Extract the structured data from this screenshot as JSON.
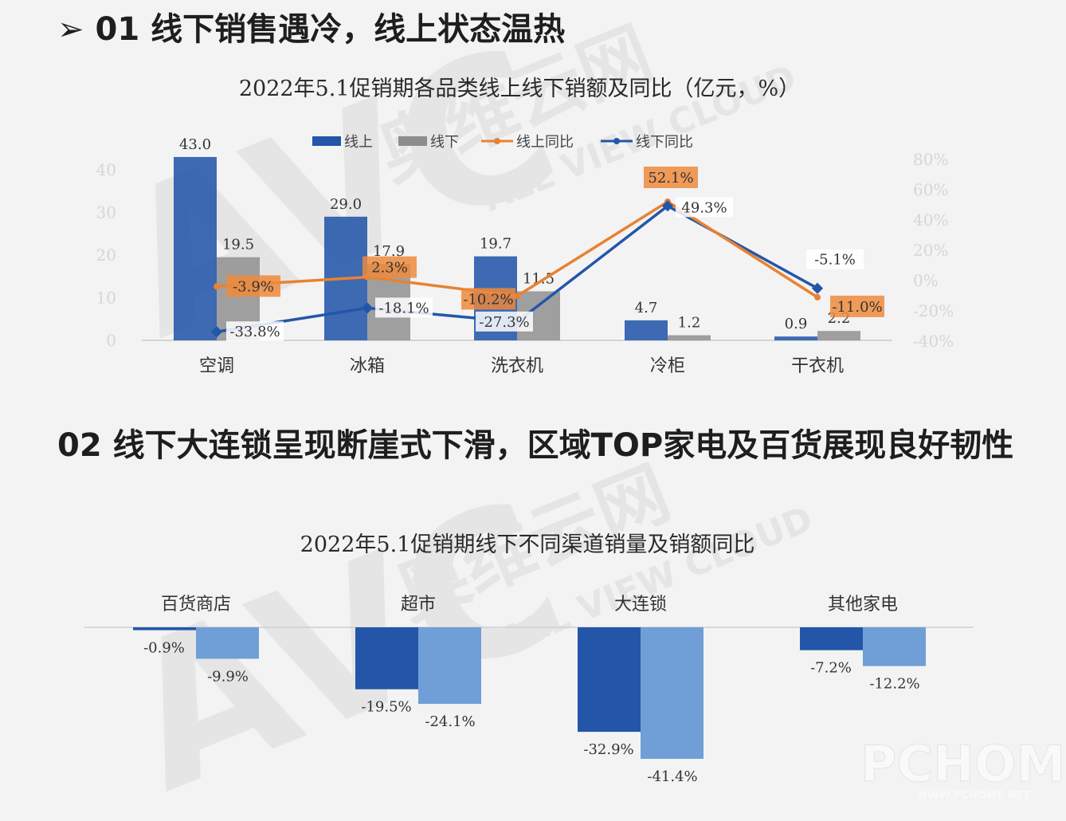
{
  "section1": {
    "marker": "➢",
    "title": "01 线下销售遇冷，线上状态温热"
  },
  "section2": {
    "title": "02 线下大连锁呈现断崖式下滑，区域TOP家电及百货展现良好韧性"
  },
  "watermark": {
    "logo": "AVC",
    "cn": "奥维云网",
    "en": "ALL VIEW CLOUD",
    "pchome": "PCHOME",
    "pchome_url": "WWW.PCHOME.NET"
  },
  "colors": {
    "online": "#2356a8",
    "offline": "#8c8c8c",
    "online_yoy": "#e8822f",
    "offline_yoy": "#2356a8",
    "label_box": "#ee8a3c",
    "light_blue": "#6f9fd6"
  },
  "chart_data": [
    {
      "type": "bar",
      "title": "2022年5.1促销期各品类线上线下销额及同比（亿元，%）",
      "categories": [
        "空调",
        "冰箱",
        "洗衣机",
        "冷柜",
        "干衣机"
      ],
      "series": [
        {
          "name": "线上",
          "kind": "bar",
          "values": [
            43.0,
            29.0,
            19.7,
            4.7,
            0.9
          ],
          "labels": [
            "43.0",
            "29.0",
            "19.7",
            "4.7",
            "0.9"
          ]
        },
        {
          "name": "线下",
          "kind": "bar",
          "values": [
            19.5,
            17.9,
            11.5,
            1.2,
            2.2
          ],
          "labels": [
            "19.5",
            "17.9",
            "11.5",
            "1.2",
            "2.2"
          ]
        },
        {
          "name": "线上同比",
          "kind": "line",
          "axis": "right",
          "values": [
            -3.9,
            2.3,
            -10.2,
            52.1,
            -11.0
          ],
          "labels": [
            "-3.9%",
            "2.3%",
            "-10.2%",
            "52.1%",
            "-11.0%"
          ]
        },
        {
          "name": "线下同比",
          "kind": "line",
          "axis": "right",
          "values": [
            -33.8,
            -18.1,
            -27.3,
            49.3,
            -5.1
          ],
          "labels": [
            "-33.8%",
            "-18.1%",
            "-27.3%",
            "49.3%",
            "-5.1%"
          ]
        }
      ],
      "ylim": [
        0,
        40
      ],
      "yticks": [
        "0",
        "10",
        "20",
        "30",
        "40"
      ],
      "y2lim": [
        -40,
        80
      ],
      "y2ticks": [
        "-40%",
        "-20%",
        "0%",
        "20%",
        "40%",
        "60%",
        "80%"
      ],
      "legend": "top",
      "grid": false
    },
    {
      "type": "bar",
      "title": "2022年5.1促销期线下不同渠道销量及销额同比",
      "categories": [
        "百货商店",
        "超市",
        "大连锁",
        "其他家电"
      ],
      "series": [
        {
          "values": [
            -0.9,
            -19.5,
            -32.9,
            -7.2
          ],
          "labels": [
            "-0.9%",
            "-19.5%",
            "-32.9%",
            "-7.2%"
          ]
        },
        {
          "values": [
            -9.9,
            -24.1,
            -41.4,
            -12.2
          ],
          "labels": [
            "-9.9%",
            "-24.1%",
            "-41.4%",
            "-12.2%"
          ]
        }
      ],
      "legend": "none",
      "grid": false
    }
  ]
}
